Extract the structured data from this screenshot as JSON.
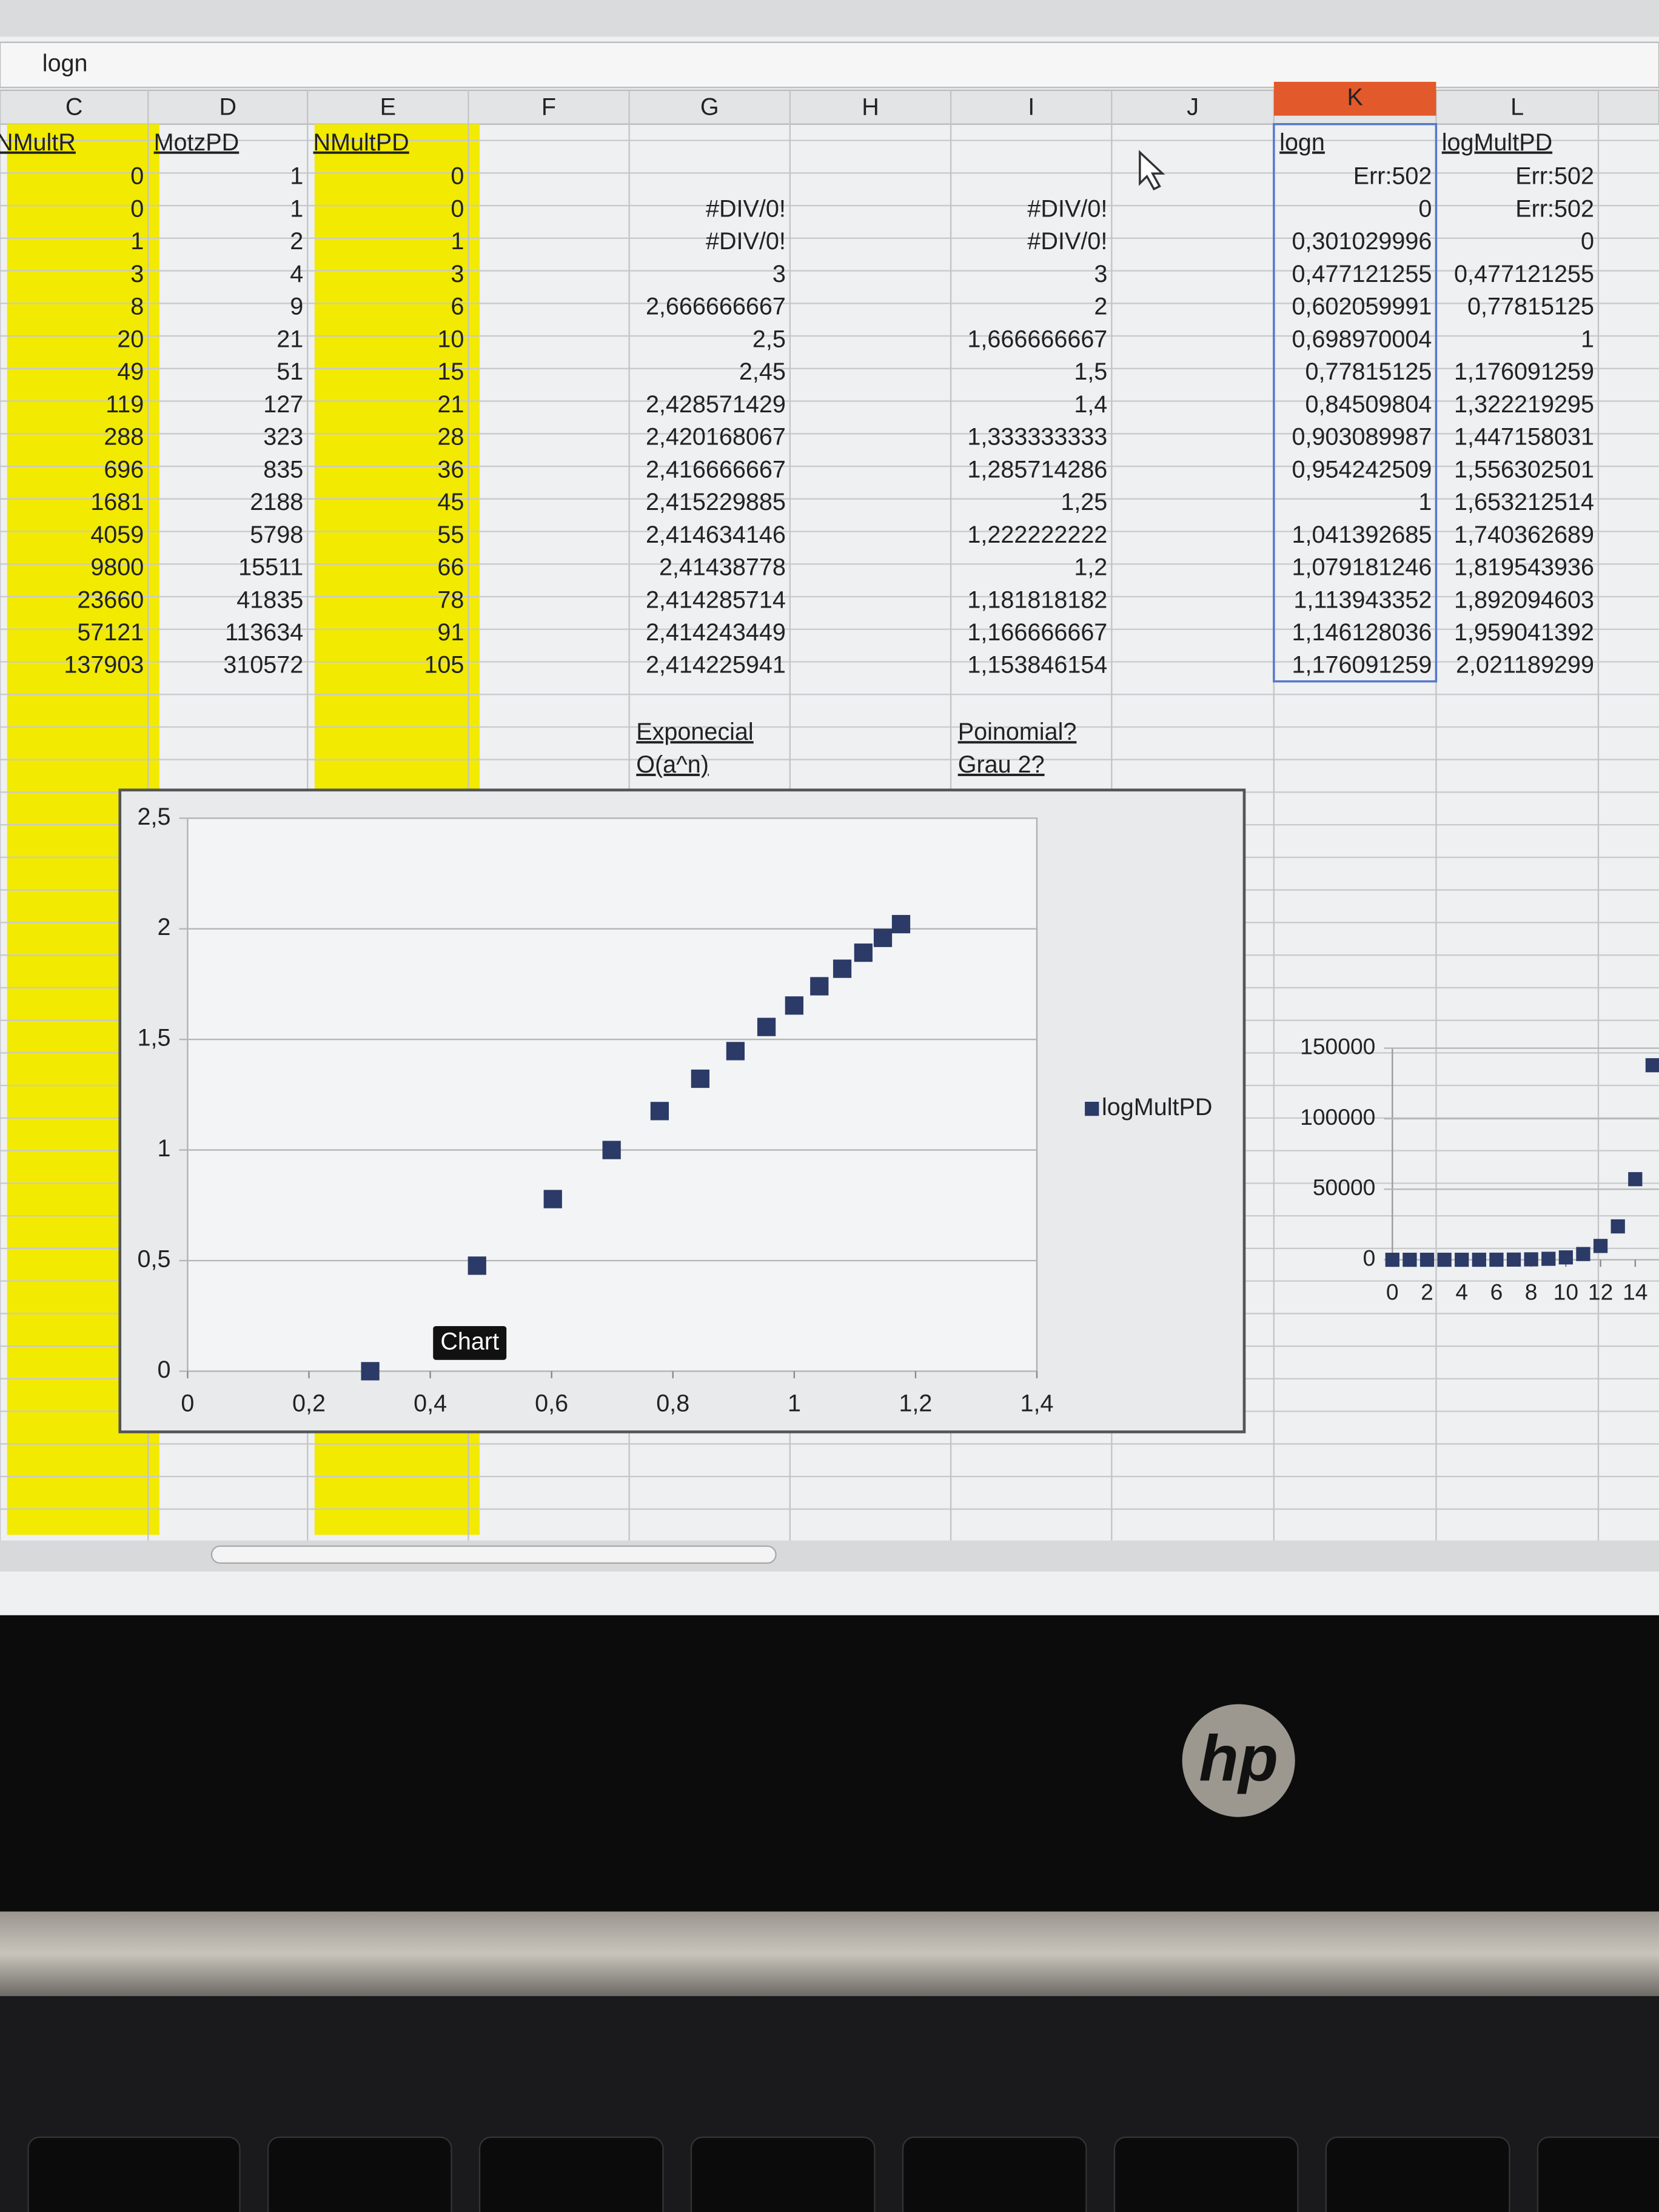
{
  "formula_bar": "logn",
  "column_headers": [
    "C",
    "D",
    "E",
    "F",
    "G",
    "H",
    "I",
    "J",
    "K",
    "L"
  ],
  "table": {
    "C": {
      "header": "NMultR",
      "cells": [
        0,
        0,
        1,
        3,
        8,
        20,
        49,
        119,
        288,
        696,
        1681,
        4059,
        9800,
        23660,
        57121,
        137903
      ]
    },
    "D": {
      "header": "MotzPD",
      "cells": [
        1,
        1,
        2,
        4,
        9,
        21,
        51,
        127,
        323,
        835,
        2188,
        5798,
        15511,
        41835,
        113634,
        310572
      ]
    },
    "E": {
      "header": "NMultPD",
      "cells": [
        0,
        0,
        1,
        3,
        6,
        10,
        15,
        21,
        28,
        36,
        45,
        55,
        66,
        78,
        91,
        105
      ]
    },
    "G": {
      "cells": [
        null,
        "#DIV/0!",
        "#DIV/0!",
        3,
        "2,666666667",
        "2,5",
        "2,45",
        "2,428571429",
        "2,420168067",
        "2,416666667",
        "2,415229885",
        "2,414634146",
        "2,41438778",
        "2,414285714",
        "2,414243449",
        "2,414225941"
      ],
      "notes": [
        "Exponecial",
        "O(a^n)"
      ]
    },
    "I": {
      "cells": [
        null,
        "#DIV/0!",
        "#DIV/0!",
        3,
        2,
        "1,666666667",
        "1,5",
        "1,4",
        "1,333333333",
        "1,285714286",
        "1,25",
        "1,222222222",
        "1,2",
        "1,181818182",
        "1,166666667",
        "1,153846154"
      ],
      "notes": [
        "Poinomial?",
        "Grau 2?"
      ]
    },
    "K": {
      "header": "logn",
      "cells": [
        "Err:502",
        0,
        "0,301029996",
        "0,477121255",
        "0,602059991",
        "0,698970004",
        "0,77815125",
        "0,84509804",
        "0,903089987",
        "0,954242509",
        1,
        "1,041392685",
        "1,079181246",
        "1,113943352",
        "1,146128036",
        "1,176091259"
      ]
    },
    "L": {
      "header": "logMultPD",
      "cells": [
        "Err:502",
        "Err:502",
        0,
        "0,477121255",
        "0,77815125",
        1,
        "1,176091259",
        "1,322219295",
        "1,447158031",
        "1,556302501",
        "1,653212514",
        "1,740362689",
        "1,819543936",
        "1,892094603",
        "1,959041392",
        "2,021189299"
      ]
    }
  },
  "chart_data": [
    {
      "type": "scatter",
      "x": [
        0.301029996,
        0.477121255,
        0.602059991,
        0.698970004,
        0.77815125,
        0.84509804,
        0.903089987,
        0.954242509,
        1,
        1.041392685,
        1.079181246,
        1.113943352,
        1.146128036,
        1.176091259
      ],
      "series": [
        {
          "name": "logMultPD",
          "color": "#2b3a67",
          "values": [
            0,
            0.477121255,
            0.77815125,
            1,
            1.176091259,
            1.322219295,
            1.447158031,
            1.556302501,
            1.653212514,
            1.740362689,
            1.819543936,
            1.892094603,
            1.959041392,
            2.021189299
          ]
        }
      ],
      "xlim": [
        0,
        1.4
      ],
      "xticks": [
        0,
        {
          "value": 0.2,
          "label": "0,2"
        },
        {
          "value": 0.4,
          "label": "0,4"
        },
        {
          "value": 0.6,
          "label": "0,6"
        },
        {
          "value": 0.8,
          "label": "0,8"
        },
        1,
        {
          "value": 1.2,
          "label": "1,2"
        },
        {
          "value": 1.4,
          "label": "1,4"
        }
      ],
      "ylim": [
        0,
        2.5
      ],
      "yticks": [
        0,
        {
          "value": 0.5,
          "label": "0,5"
        },
        1,
        {
          "value": 1.5,
          "label": "1,5"
        },
        2,
        {
          "value": 2.5,
          "label": "2,5"
        }
      ],
      "grid": true,
      "legend": "right",
      "tooltip": "Chart"
    },
    {
      "type": "scatter",
      "x": [
        0,
        1,
        2,
        3,
        4,
        5,
        6,
        7,
        8,
        9,
        10,
        11,
        12,
        13,
        14,
        15
      ],
      "series": [
        {
          "color": "#2b3a67",
          "values": [
            0,
            0,
            1,
            3,
            8,
            20,
            49,
            119,
            288,
            696,
            1681,
            4059,
            9800,
            23660,
            57121,
            137903
          ]
        }
      ],
      "xlim": [
        0,
        15.5
      ],
      "xticks": [
        0,
        2,
        4,
        6,
        8,
        10,
        12,
        14
      ],
      "ylim": [
        0,
        150000
      ],
      "yticks": [
        0,
        50000,
        100000,
        150000
      ],
      "grid": true
    }
  ],
  "brand": "hp"
}
